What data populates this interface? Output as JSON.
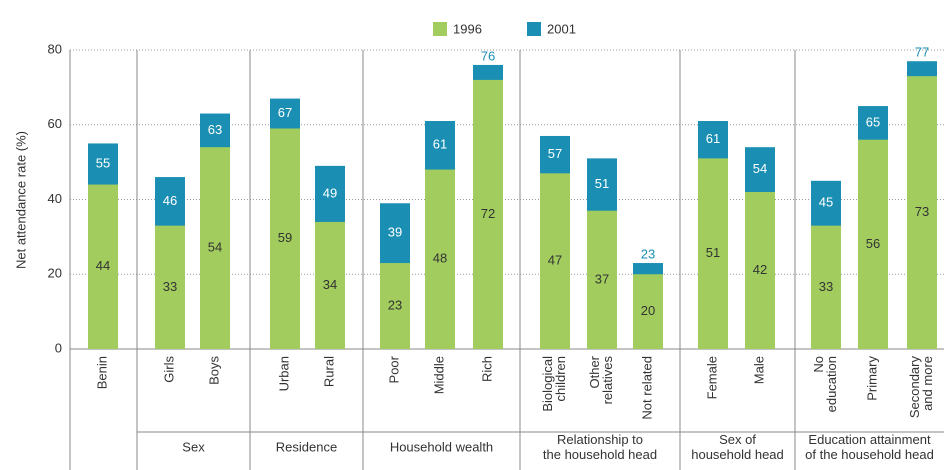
{
  "chart_data": {
    "type": "bar",
    "y_label": "Net attendance rate (%)",
    "categories": [
      [
        "Benin"
      ],
      [
        "Girls"
      ],
      [
        "Boys"
      ],
      [
        "Urban"
      ],
      [
        "Rural"
      ],
      [
        "Poor"
      ],
      [
        "Middle"
      ],
      [
        "Rich"
      ],
      [
        "Biological",
        "children"
      ],
      [
        "Other",
        "relatives"
      ],
      [
        "Not related"
      ],
      [
        "Female"
      ],
      [
        "Male"
      ],
      [
        "No",
        "education"
      ],
      [
        "Primary"
      ],
      [
        "Secondary",
        "and more"
      ]
    ],
    "groups": [
      [
        "Sex"
      ],
      [
        "Residence"
      ],
      [
        "Household wealth"
      ],
      [
        "Relationship to",
        "the household head"
      ],
      [
        "Sex of",
        "household head"
      ],
      [
        "Education attainment",
        "of the household head"
      ]
    ],
    "series": [
      {
        "name": "1996",
        "color": "#a2cd5e",
        "values": [
          44,
          33,
          54,
          59,
          34,
          23,
          48,
          72,
          47,
          37,
          20,
          51,
          42,
          33,
          56,
          73
        ]
      },
      {
        "name": "2001",
        "color": "#1a8fb3",
        "values": [
          55,
          46,
          63,
          67,
          49,
          39,
          61,
          76,
          57,
          51,
          23,
          61,
          54,
          45,
          65,
          77
        ]
      }
    ],
    "ylim": [
      0,
      80
    ],
    "yticks": [
      0,
      20,
      40,
      60,
      80
    ],
    "grid": true
  }
}
